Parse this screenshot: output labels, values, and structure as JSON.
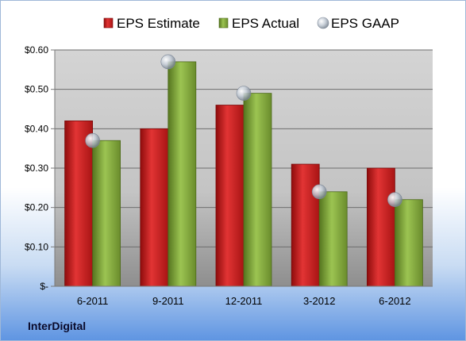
{
  "brand": "InterDigital",
  "colors": {
    "estimate": "#cc1f1f",
    "actual": "#7ea33c",
    "gaap": "#b8bfc8"
  },
  "chart_data": {
    "type": "bar",
    "categories": [
      "6-2011",
      "9-2011",
      "12-2011",
      "3-2012",
      "6-2012"
    ],
    "series": [
      {
        "name": "EPS Estimate",
        "type": "bar",
        "values": [
          0.42,
          0.4,
          0.46,
          0.31,
          0.3
        ]
      },
      {
        "name": "EPS Actual",
        "type": "bar",
        "values": [
          0.37,
          0.57,
          0.49,
          0.24,
          0.22
        ]
      },
      {
        "name": "EPS GAAP",
        "type": "scatter",
        "values": [
          0.37,
          0.57,
          0.49,
          0.24,
          0.22
        ]
      }
    ],
    "yticks": [
      {
        "value": 0,
        "label": "$-"
      },
      {
        "value": 0.1,
        "label": "$0.10"
      },
      {
        "value": 0.2,
        "label": "$0.20"
      },
      {
        "value": 0.3,
        "label": "$0.30"
      },
      {
        "value": 0.4,
        "label": "$0.40"
      },
      {
        "value": 0.5,
        "label": "$0.50"
      },
      {
        "value": 0.6,
        "label": "$0.60"
      }
    ],
    "ylim": [
      0,
      0.6
    ],
    "grid": true,
    "legend": "top"
  }
}
